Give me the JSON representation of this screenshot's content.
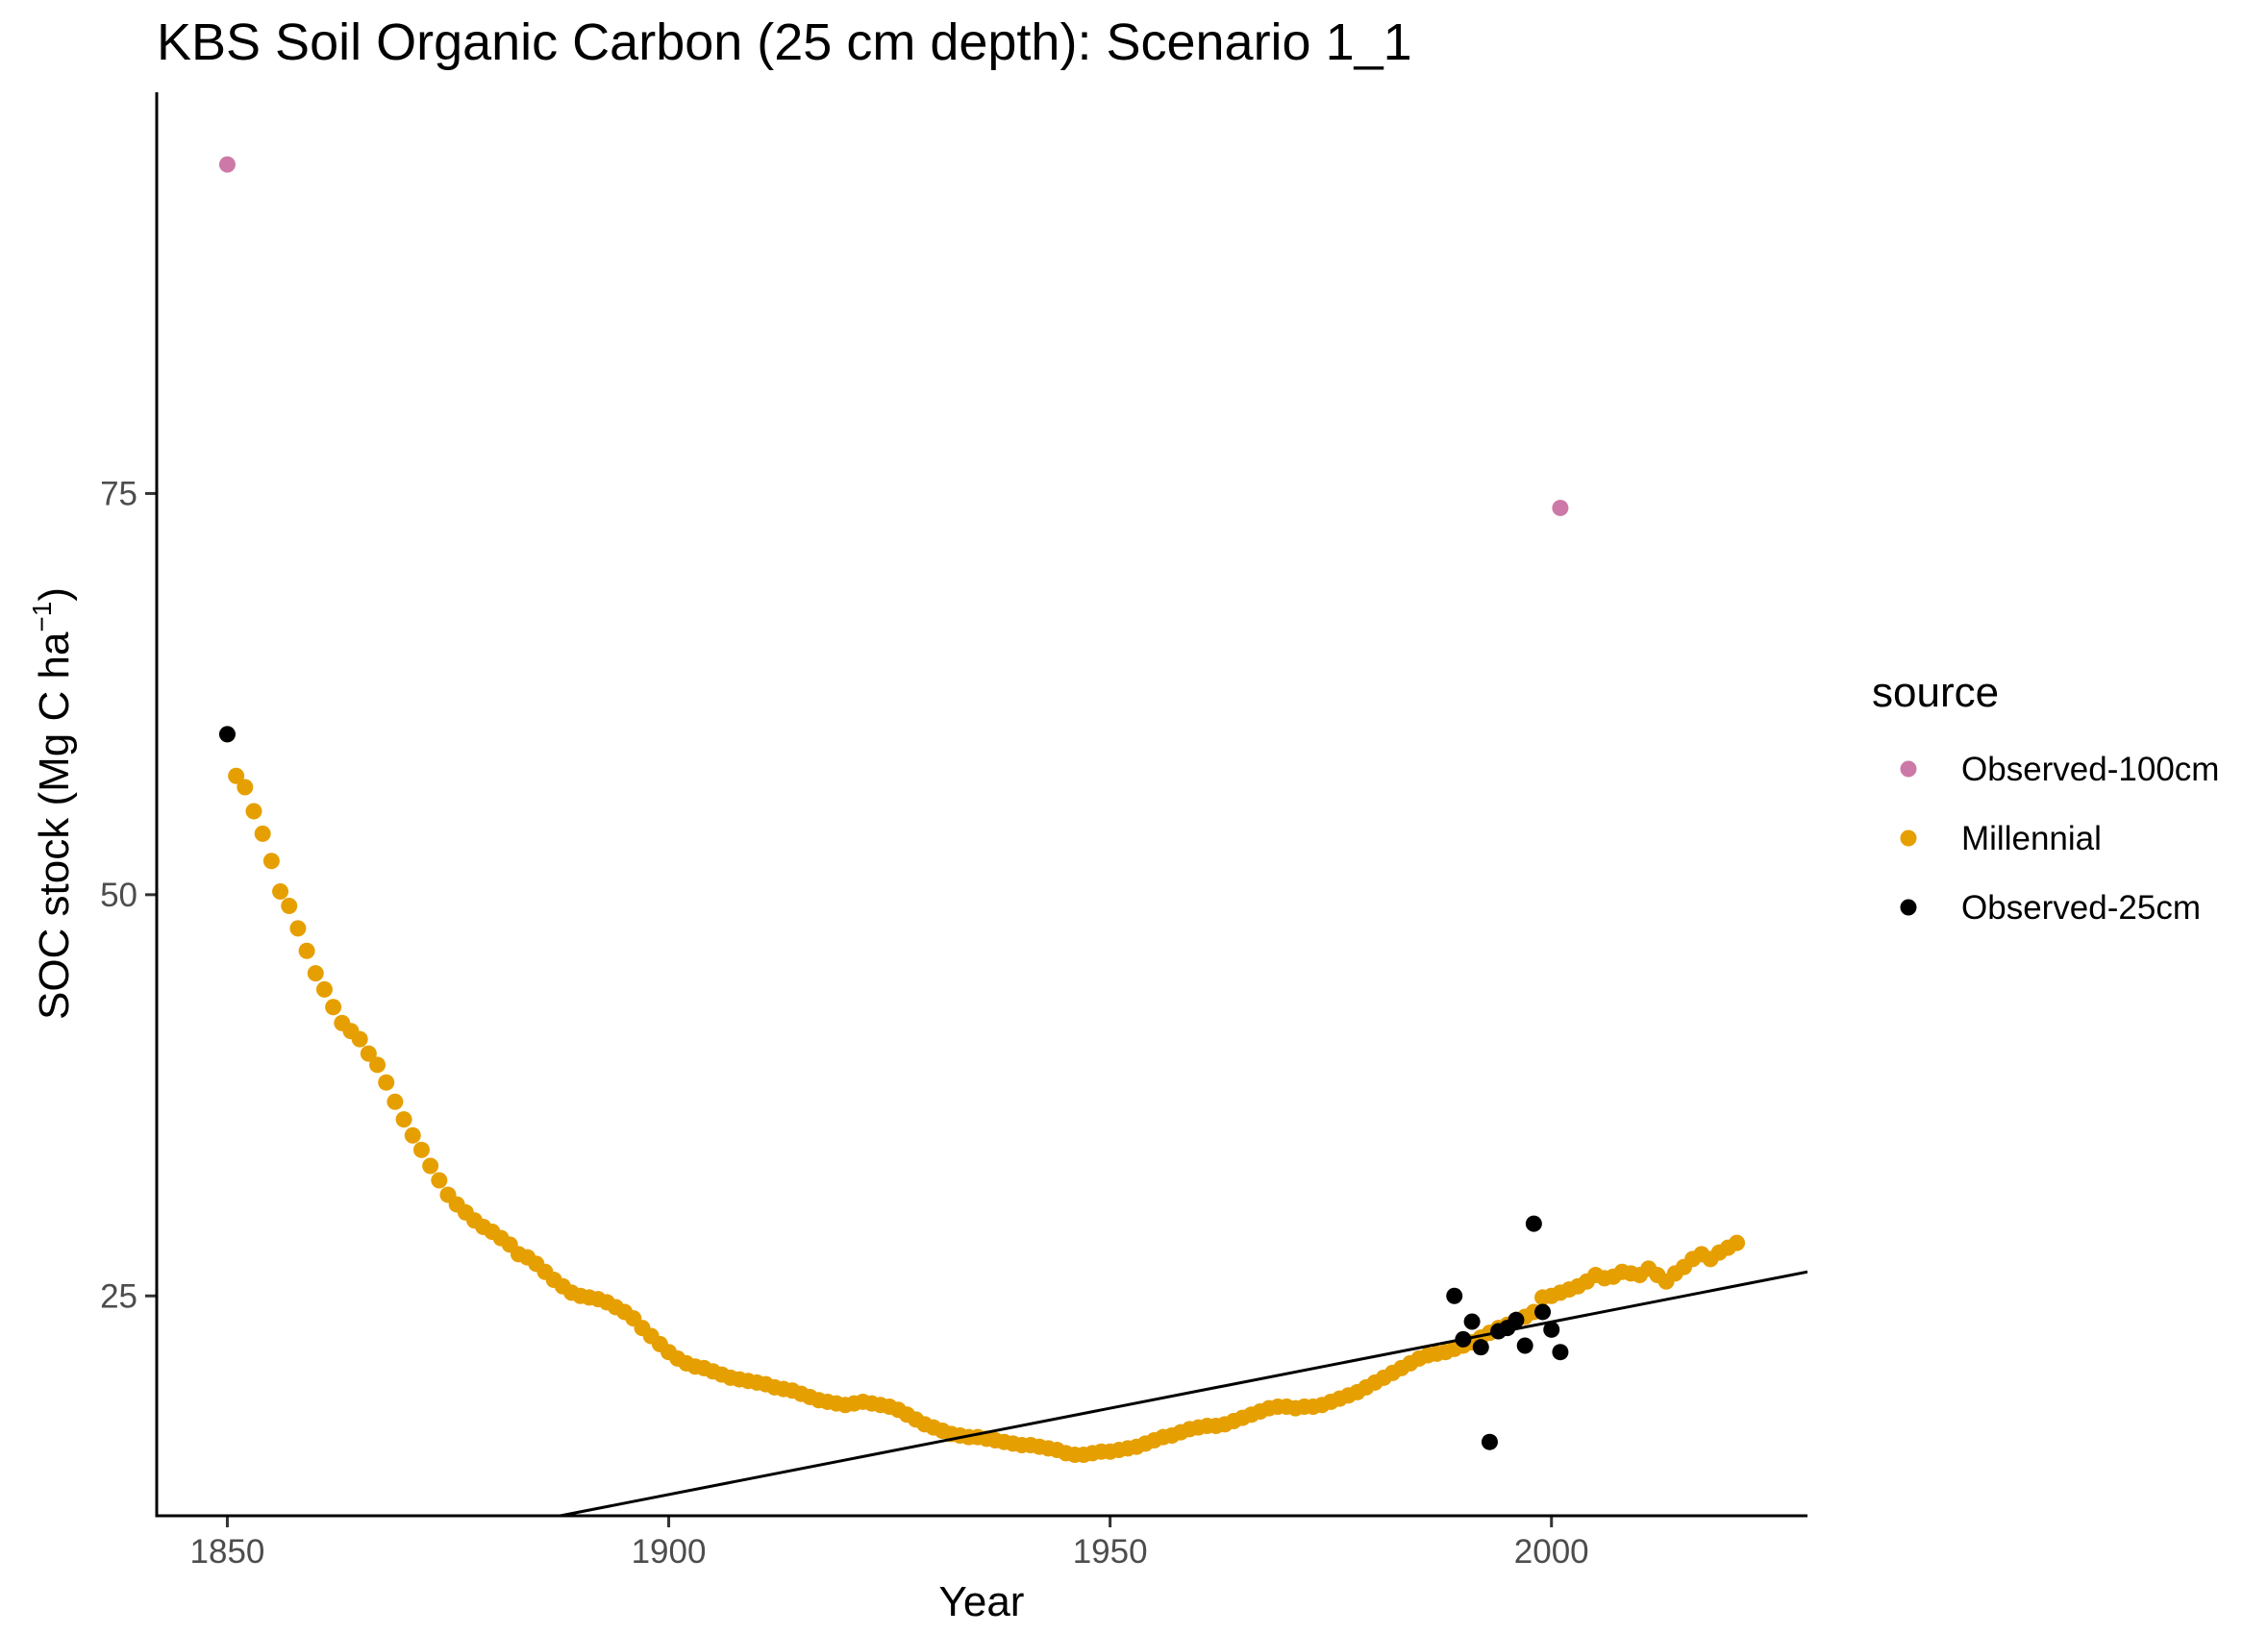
{
  "chart_data": {
    "type": "scatter",
    "title": "KBS Soil Organic Carbon (25 cm depth): Scenario  1_1",
    "xlabel": "Year",
    "ylabel": "SOC stock (Mg C ha",
    "ylabel_superscript": "−1",
    "ylabel_close": ")",
    "xlim": [
      1842,
      2029
    ],
    "ylim": [
      11.3,
      100
    ],
    "x_ticks": [
      1850,
      1900,
      1950,
      2000
    ],
    "y_ticks": [
      25,
      50,
      75
    ],
    "x_tick_labels": [
      "1850",
      "1900",
      "1950",
      "2000"
    ],
    "y_tick_labels": [
      "25",
      "50",
      "75"
    ],
    "grid": false,
    "legend": {
      "title": "source",
      "position": "right",
      "entries": [
        "Observed-100cm",
        "Millennial",
        "Observed-25cm"
      ]
    },
    "series": [
      {
        "name": "Observed-100cm",
        "color": "#CC79A7",
        "points": [
          [
            1850,
            95.5
          ],
          [
            2001,
            74.1
          ]
        ]
      },
      {
        "name": "Millennial",
        "color": "#E69F00",
        "x_start": 1850,
        "x_step": 1,
        "values": [
          60.0,
          57.4,
          56.7,
          55.2,
          53.8,
          52.1,
          50.2,
          49.3,
          47.9,
          46.5,
          45.1,
          44.1,
          43.0,
          42.0,
          41.5,
          41.0,
          40.1,
          39.4,
          38.3,
          37.1,
          36.0,
          35.0,
          34.1,
          33.1,
          32.2,
          31.3,
          30.7,
          30.2,
          29.7,
          29.3,
          29.0,
          28.6,
          28.2,
          27.6,
          27.4,
          27.0,
          26.5,
          26.0,
          25.6,
          25.2,
          25.0,
          24.9,
          24.8,
          24.6,
          24.3,
          24.0,
          23.6,
          23.0,
          22.5,
          22.0,
          21.5,
          21.1,
          20.8,
          20.6,
          20.5,
          20.3,
          20.1,
          19.9,
          19.8,
          19.7,
          19.6,
          19.5,
          19.3,
          19.2,
          19.1,
          18.9,
          18.7,
          18.5,
          18.4,
          18.3,
          18.2,
          18.3,
          18.4,
          18.3,
          18.2,
          18.1,
          17.9,
          17.6,
          17.3,
          17.0,
          16.8,
          16.6,
          16.4,
          16.3,
          16.2,
          16.2,
          16.1,
          16.0,
          15.9,
          15.8,
          15.7,
          15.7,
          15.6,
          15.5,
          15.4,
          15.2,
          15.1,
          15.1,
          15.2,
          15.3,
          15.3,
          15.4,
          15.5,
          15.6,
          15.8,
          16.0,
          16.2,
          16.3,
          16.5,
          16.7,
          16.8,
          16.9,
          16.9,
          17.0,
          17.2,
          17.4,
          17.6,
          17.8,
          18.0,
          18.1,
          18.1,
          18.0,
          18.1,
          18.1,
          18.2,
          18.4,
          18.6,
          18.8,
          19.0,
          19.3,
          19.6,
          19.9,
          20.2,
          20.5,
          20.8,
          21.1,
          21.3,
          21.4,
          21.5,
          21.7,
          21.9,
          22.1,
          22.4,
          22.7,
          23.0,
          23.2,
          23.5,
          23.7,
          24.0,
          24.9,
          25.0,
          25.2,
          25.4,
          25.6,
          25.9,
          26.3,
          26.1,
          26.2,
          26.5,
          26.4,
          26.3,
          26.7,
          26.3,
          25.9,
          26.4,
          26.8,
          27.3,
          27.6,
          27.3,
          27.7,
          28.0,
          28.3
        ]
      },
      {
        "name": "Observed-25cm",
        "color": "#000000",
        "points": [
          [
            1850,
            60.0
          ],
          [
            1989,
            25.0
          ],
          [
            1990,
            22.3
          ],
          [
            1991,
            23.4
          ],
          [
            1992,
            21.8
          ],
          [
            1993,
            15.9
          ],
          [
            1994,
            22.8
          ],
          [
            1995,
            23.0
          ],
          [
            1996,
            23.5
          ],
          [
            1997,
            21.9
          ],
          [
            1998,
            29.5
          ],
          [
            1999,
            24.0
          ],
          [
            2000,
            22.9
          ],
          [
            2001,
            21.5
          ]
        ]
      }
    ],
    "trend_line": {
      "color": "#000000",
      "x": [
        1887.7,
        2029
      ],
      "y": [
        11.3,
        26.5
      ]
    }
  }
}
